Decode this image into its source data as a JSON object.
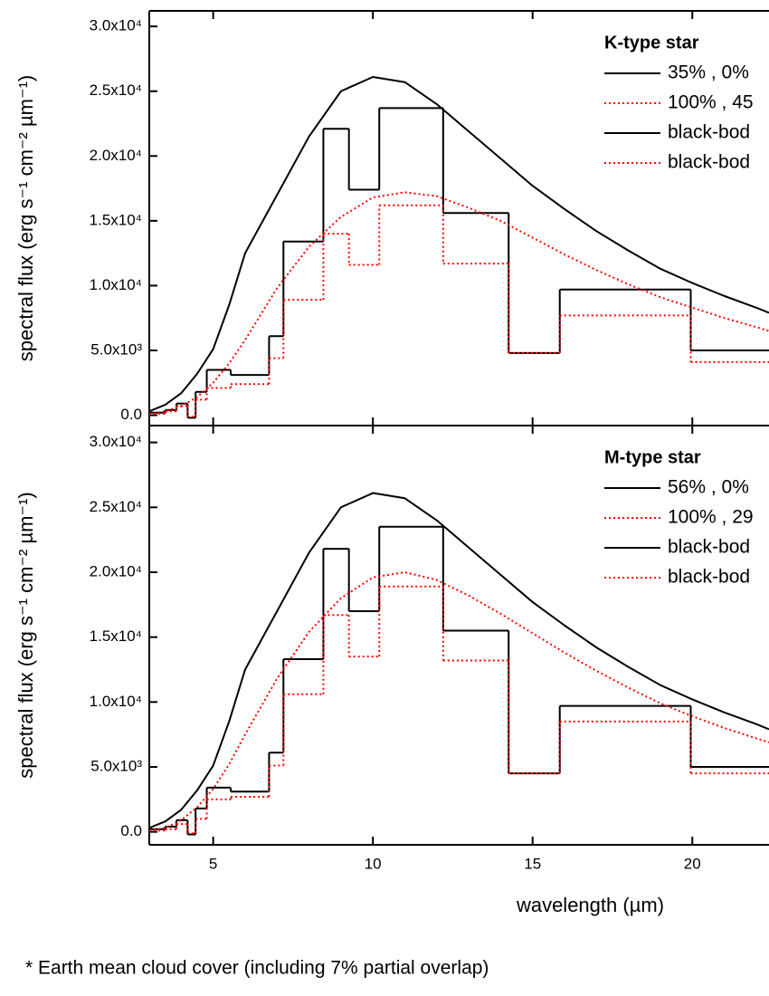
{
  "chart_data": [
    {
      "type": "line",
      "legend_title": "K-type star",
      "ylabel": "spectral flux (erg s⁻¹ cm⁻² µm⁻¹)",
      "xlim": [
        3,
        22.4
      ],
      "ylim": [
        -800,
        31200
      ],
      "xticks": [
        5,
        10,
        15,
        20
      ],
      "show_xtick_labels": false,
      "yticks": [
        {
          "value": 0,
          "label": "0.0"
        },
        {
          "value": 5000,
          "label": "5.0x10³"
        },
        {
          "value": 10000,
          "label": "1.0x10⁴"
        },
        {
          "value": 15000,
          "label": "1.5x10⁴"
        },
        {
          "value": 20000,
          "label": "2.0x10⁴"
        },
        {
          "value": 25000,
          "label": "2.5x10⁴"
        },
        {
          "value": 30000,
          "label": "3.0x10⁴"
        }
      ],
      "legend": "upper right",
      "series": [
        {
          "name": "35% , 0%",
          "color": "#000000",
          "dashed": false,
          "drawstyle": "steps",
          "bins": [
            3.0,
            3.5,
            3.85,
            4.2,
            4.45,
            4.8,
            5.55,
            6.75,
            7.2,
            8.45,
            9.25,
            10.2,
            12.2,
            14.25,
            15.85,
            19.95,
            22.4
          ],
          "values": [
            200,
            400,
            900,
            -200,
            1800,
            3500,
            3100,
            6100,
            13400,
            22100,
            17400,
            23700,
            15600,
            4800,
            9700,
            5000
          ]
        },
        {
          "name": "100% , 45",
          "color": "#ff0000",
          "dashed": true,
          "drawstyle": "steps",
          "bins": [
            3.0,
            3.5,
            3.85,
            4.2,
            4.45,
            4.8,
            5.55,
            6.75,
            7.2,
            8.45,
            9.25,
            10.2,
            12.2,
            14.25,
            15.85,
            19.95,
            22.4
          ],
          "values": [
            100,
            300,
            700,
            -100,
            1200,
            2100,
            2400,
            4400,
            8900,
            14000,
            11600,
            16200,
            11700,
            4800,
            7700,
            4100
          ]
        },
        {
          "name": "black-bod",
          "color": "#000000",
          "dashed": false,
          "drawstyle": "line",
          "x": [
            3,
            3.5,
            4,
            4.5,
            5,
            5.5,
            6,
            7,
            8,
            9,
            10,
            11,
            12,
            13,
            14,
            15,
            16,
            17,
            18,
            19,
            20,
            21,
            22,
            22.4
          ],
          "values": [
            300,
            800,
            1700,
            3200,
            5100,
            8500,
            12500,
            17000,
            21500,
            25000,
            26100,
            25700,
            24000,
            21900,
            19800,
            17700,
            15900,
            14200,
            12700,
            11300,
            10200,
            9200,
            8300,
            7900
          ]
        },
        {
          "name": "black-bod",
          "color": "#ff0000",
          "dashed": true,
          "drawstyle": "line",
          "x": [
            3,
            3.5,
            4,
            4.5,
            5,
            5.5,
            6,
            7,
            8,
            9,
            10,
            11,
            12,
            13,
            14,
            15,
            16,
            17,
            18,
            19,
            20,
            21,
            22,
            22.4
          ],
          "values": [
            100,
            300,
            700,
            1400,
            2500,
            4000,
            5800,
            9800,
            13000,
            15300,
            16800,
            17200,
            16900,
            16000,
            15000,
            13700,
            12400,
            11200,
            10100,
            9100,
            8300,
            7500,
            6800,
            6500
          ]
        }
      ]
    },
    {
      "type": "line",
      "legend_title": "M-type star",
      "ylabel": "spectral flux (erg s⁻¹ cm⁻² µm⁻¹)",
      "xlabel": "wavelength (µm)",
      "xlim": [
        3,
        22.4
      ],
      "ylim": [
        -1000,
        31300
      ],
      "xticks": [
        5,
        10,
        15,
        20
      ],
      "show_xtick_labels": true,
      "yticks": [
        {
          "value": 0,
          "label": "0.0"
        },
        {
          "value": 5000,
          "label": "5.0x10³"
        },
        {
          "value": 10000,
          "label": "1.0x10⁴"
        },
        {
          "value": 15000,
          "label": "1.5x10⁴"
        },
        {
          "value": 20000,
          "label": "2.0x10⁴"
        },
        {
          "value": 25000,
          "label": "2.5x10⁴"
        },
        {
          "value": 30000,
          "label": "3.0x10⁴"
        }
      ],
      "legend": "upper right",
      "series": [
        {
          "name": "56% , 0%",
          "color": "#000000",
          "dashed": false,
          "drawstyle": "steps",
          "bins": [
            3.0,
            3.5,
            3.85,
            4.2,
            4.45,
            4.8,
            5.55,
            6.75,
            7.2,
            8.45,
            9.25,
            10.2,
            12.2,
            14.25,
            15.85,
            19.95,
            22.4
          ],
          "values": [
            200,
            400,
            900,
            -200,
            1800,
            3400,
            3100,
            6100,
            13300,
            21800,
            17000,
            23500,
            15500,
            4500,
            9700,
            5000
          ]
        },
        {
          "name": "100% , 29",
          "color": "#ff0000",
          "dashed": true,
          "drawstyle": "steps",
          "bins": [
            3.0,
            3.5,
            3.85,
            4.2,
            4.45,
            4.8,
            5.55,
            6.75,
            7.2,
            8.45,
            9.25,
            10.2,
            12.2,
            14.25,
            15.85,
            19.95,
            22.4
          ],
          "values": [
            100,
            200,
            600,
            -100,
            1000,
            2500,
            2700,
            5100,
            10600,
            16700,
            13500,
            18900,
            13200,
            4500,
            8500,
            4500
          ]
        },
        {
          "name": "black-bod",
          "color": "#000000",
          "dashed": false,
          "drawstyle": "line",
          "x": [
            3,
            3.5,
            4,
            4.5,
            5,
            5.5,
            6,
            7,
            8,
            9,
            10,
            11,
            12,
            13,
            14,
            15,
            16,
            17,
            18,
            19,
            20,
            21,
            22,
            22.4
          ],
          "values": [
            300,
            800,
            1700,
            3200,
            5100,
            8500,
            12500,
            17000,
            21500,
            25000,
            26100,
            25700,
            24000,
            21900,
            19800,
            17700,
            15900,
            14200,
            12700,
            11300,
            10200,
            9200,
            8300,
            7900
          ]
        },
        {
          "name": "black-bod",
          "color": "#ff0000",
          "dashed": true,
          "drawstyle": "line",
          "x": [
            3,
            3.5,
            4,
            4.5,
            5,
            5.5,
            6,
            7,
            8,
            9,
            10,
            11,
            12,
            13,
            14,
            15,
            16,
            17,
            18,
            19,
            20,
            21,
            22,
            22.4
          ],
          "values": [
            100,
            300,
            900,
            1900,
            3300,
            5200,
            7500,
            11800,
            15400,
            18000,
            19600,
            20000,
            19400,
            18200,
            16800,
            15300,
            13800,
            12400,
            11100,
            9900,
            8900,
            8000,
            7200,
            6900
          ]
        }
      ]
    }
  ],
  "footnote": "* Earth mean cloud cover (including 7% partial overlap)"
}
